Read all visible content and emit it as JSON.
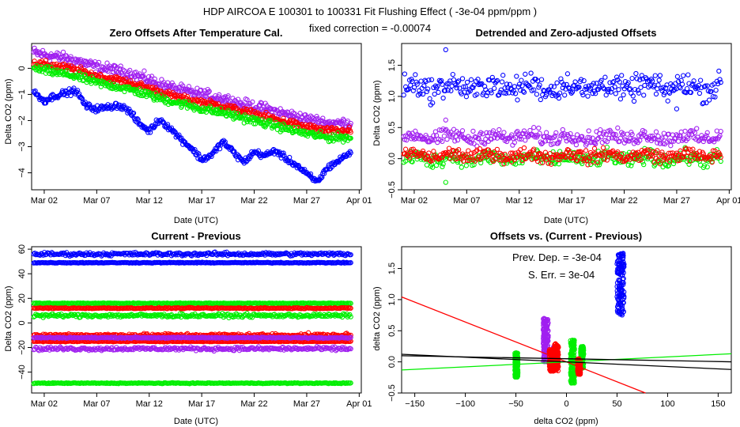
{
  "figure": {
    "title": "HDP    AIRCOA E    100301 to 100331   Fit Flushing Effect ( -3e-04 ppm/ppm )",
    "subtitle": "fixed correction = -0.00074"
  },
  "colors": {
    "blue": "#0000ff",
    "green": "#00ee00",
    "red": "#ff0000",
    "purple": "#a020f0"
  },
  "chart_data": [
    {
      "type": "scatter",
      "title": "Zero Offsets After Temperature Cal.",
      "xlabel": "Date (UTC)",
      "ylabel": "Delta CO2 (ppm)",
      "x_tick_labels": [
        "Mar 02",
        "Mar 07",
        "Mar 12",
        "Mar 17",
        "Mar 22",
        "Mar 27",
        "Apr 01"
      ],
      "x_tick_days": [
        1,
        6,
        11,
        16,
        21,
        26,
        31
      ],
      "xlim_days": [
        -0.2,
        31.2
      ],
      "ylim": [
        -4.65,
        0.95
      ],
      "y_ticks": [
        -4,
        -3,
        -2,
        -1,
        0
      ],
      "series": [
        {
          "color": "purple",
          "x_days": [
            0,
            2,
            4,
            6,
            8,
            10,
            12,
            14,
            16,
            18,
            20,
            22,
            24,
            26,
            28,
            30
          ],
          "y": [
            0.6,
            0.45,
            0.3,
            0.05,
            -0.1,
            -0.3,
            -0.6,
            -0.85,
            -1.0,
            -1.15,
            -1.4,
            -1.55,
            -1.75,
            -1.95,
            -2.1,
            -2.1
          ],
          "spread": 0.18
        },
        {
          "color": "red",
          "x_days": [
            0,
            2,
            4,
            6,
            8,
            10,
            12,
            14,
            16,
            18,
            20,
            22,
            24,
            26,
            28,
            30
          ],
          "y": [
            0.2,
            0.1,
            -0.05,
            -0.3,
            -0.45,
            -0.65,
            -0.9,
            -1.15,
            -1.3,
            -1.45,
            -1.65,
            -1.85,
            -2.05,
            -2.25,
            -2.4,
            -2.4
          ],
          "spread": 0.12
        },
        {
          "color": "green",
          "x_days": [
            0,
            2,
            4,
            6,
            8,
            10,
            12,
            14,
            16,
            18,
            20,
            22,
            24,
            26,
            28,
            30
          ],
          "y": [
            0.0,
            -0.15,
            -0.3,
            -0.55,
            -0.7,
            -0.9,
            -1.15,
            -1.35,
            -1.55,
            -1.7,
            -1.9,
            -2.1,
            -2.3,
            -2.5,
            -2.65,
            -2.65
          ],
          "spread": 0.13
        },
        {
          "color": "blue",
          "x_days": [
            0,
            1,
            2,
            3,
            4,
            5,
            6,
            7,
            8,
            9,
            10,
            11,
            12,
            13,
            14,
            15,
            16,
            17,
            18,
            19,
            20,
            21,
            22,
            23,
            24,
            25,
            26,
            27,
            28,
            29,
            30
          ],
          "y": [
            -0.9,
            -1.25,
            -1.05,
            -0.95,
            -0.85,
            -1.45,
            -1.55,
            -1.5,
            -1.4,
            -1.6,
            -2.1,
            -2.4,
            -1.95,
            -2.3,
            -2.7,
            -3.05,
            -3.5,
            -3.3,
            -2.8,
            -3.2,
            -3.6,
            -3.2,
            -3.35,
            -3.15,
            -3.45,
            -3.7,
            -4.05,
            -4.35,
            -3.8,
            -3.55,
            -3.25
          ],
          "spread": 0.1
        }
      ]
    },
    {
      "type": "scatter",
      "title": "Detrended and Zero-adjusted Offsets",
      "xlabel": "Date (UTC)",
      "ylabel": "Delta CO2 (ppm)",
      "x_tick_labels": [
        "Mar 02",
        "Mar 07",
        "Mar 12",
        "Mar 17",
        "Mar 22",
        "Mar 27",
        "Apr 01"
      ],
      "x_tick_days": [
        1,
        6,
        11,
        16,
        21,
        26,
        31
      ],
      "xlim_days": [
        -0.2,
        31.2
      ],
      "ylim": [
        -0.5,
        1.85
      ],
      "y_ticks": [
        -0.5,
        0.0,
        0.5,
        1.0,
        1.5
      ],
      "series": [
        {
          "color": "blue",
          "mean": 1.15,
          "spread": 0.16,
          "extremes": [
            1.75,
            0.8
          ]
        },
        {
          "color": "purple",
          "mean": 0.35,
          "spread": 0.1,
          "extremes": [
            0.62
          ]
        },
        {
          "color": "green",
          "mean": 0.0,
          "spread": 0.1,
          "extremes": [
            -0.38
          ]
        },
        {
          "color": "red",
          "mean": 0.05,
          "spread": 0.09
        }
      ]
    },
    {
      "type": "scatter",
      "title": "Current - Previous",
      "xlabel": "Date (UTC)",
      "ylabel": "Delta CO2 (ppm)",
      "x_tick_labels": [
        "Mar 02",
        "Mar 07",
        "Mar 12",
        "Mar 17",
        "Mar 22",
        "Mar 27",
        "Apr 01"
      ],
      "x_tick_days": [
        1,
        6,
        11,
        16,
        21,
        26,
        31
      ],
      "xlim_days": [
        -0.2,
        31.2
      ],
      "ylim": [
        -57,
        62
      ],
      "y_ticks": [
        -40,
        -20,
        0,
        20,
        40,
        60
      ],
      "series": [
        {
          "color": "blue",
          "levels": [
            56,
            49
          ],
          "spread": [
            1.2,
            0.3
          ]
        },
        {
          "color": "green",
          "levels": [
            16,
            6,
            -49
          ],
          "spread": [
            0.3,
            1.2,
            0.3
          ]
        },
        {
          "color": "red",
          "levels": [
            12,
            -10,
            -15
          ],
          "spread": [
            0.4,
            1.2,
            0.3
          ]
        },
        {
          "color": "purple",
          "levels": [
            -12,
            -21
          ],
          "spread": [
            0.4,
            1.2
          ]
        }
      ]
    },
    {
      "type": "scatter",
      "title": "Offsets vs. (Current - Previous)",
      "xlabel": "delta CO2 (ppm)",
      "ylabel": "delta CO2 (ppm)",
      "xlim": [
        -163,
        163
      ],
      "ylim": [
        -0.5,
        1.85
      ],
      "x_ticks": [
        -150,
        -100,
        -50,
        0,
        50,
        100,
        150
      ],
      "y_ticks": [
        -0.5,
        0.0,
        0.5,
        1.0,
        1.5
      ],
      "annotations": [
        "Prev. Dep. =  -3e-04",
        "S. Err. =  3e-04"
      ],
      "clusters": [
        {
          "color": "blue",
          "x": [
            50,
            57
          ],
          "y": [
            0.75,
            1.75
          ]
        },
        {
          "color": "purple",
          "x": [
            -23,
            -18
          ],
          "y": [
            0.0,
            0.7
          ]
        },
        {
          "color": "purple",
          "x": [
            -13,
            -9
          ],
          "y": [
            -0.05,
            0.25
          ]
        },
        {
          "color": "green",
          "x": [
            -51,
            -48
          ],
          "y": [
            -0.25,
            0.15
          ]
        },
        {
          "color": "green",
          "x": [
            4,
            8
          ],
          "y": [
            -0.35,
            0.35
          ]
        },
        {
          "color": "green",
          "x": [
            14,
            17
          ],
          "y": [
            -0.1,
            0.25
          ]
        },
        {
          "color": "red",
          "x": [
            -17,
            -13
          ],
          "y": [
            -0.15,
            0.2
          ]
        },
        {
          "color": "red",
          "x": [
            -12,
            -8
          ],
          "y": [
            -0.15,
            0.3
          ]
        },
        {
          "color": "red",
          "x": [
            11,
            14
          ],
          "y": [
            -0.2,
            0.05
          ]
        }
      ],
      "lines": [
        {
          "color": "red",
          "slope": -0.0064,
          "intercept": 0.0
        },
        {
          "color": "green",
          "slope": 0.0008,
          "intercept": 0.0
        },
        {
          "color": "black",
          "slope": -0.0003,
          "intercept": 0.05
        },
        {
          "color": "black",
          "slope": -0.00075,
          "intercept": 0.0
        }
      ]
    }
  ]
}
